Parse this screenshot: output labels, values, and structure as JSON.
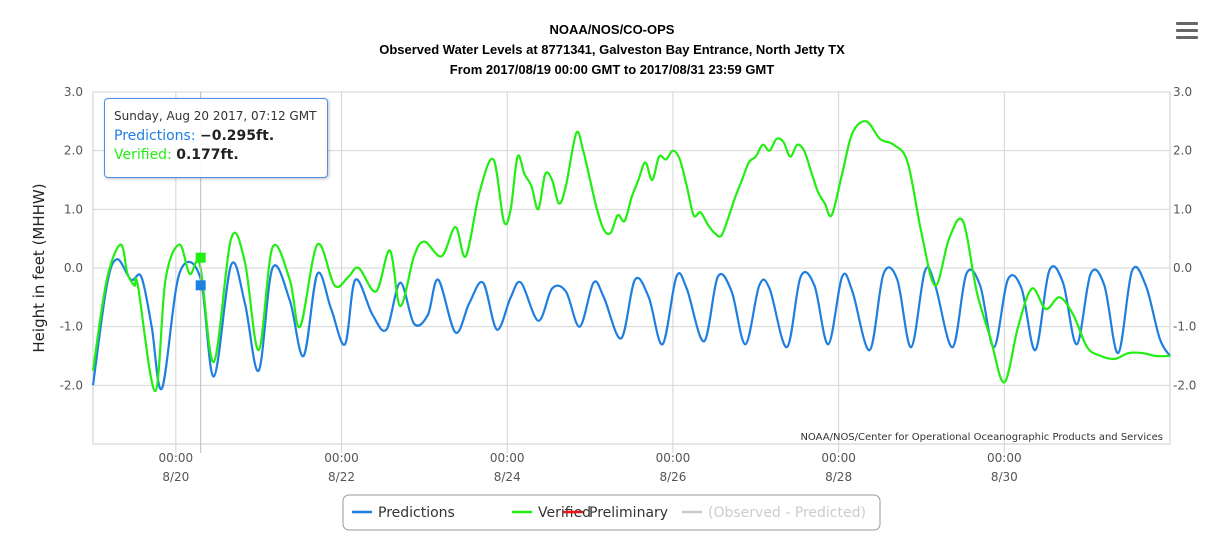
{
  "title": {
    "line1": "NOAA/NOS/CO-OPS",
    "line2": "Observed Water Levels at 8771341, Galveston Bay Entrance, North Jetty TX",
    "line3": "From 2017/08/19 00:00 GMT to 2017/08/31 23:59 GMT"
  },
  "credit": "NOAA/NOS/Center for Operational Oceanographic Products and Services",
  "tooltip": {
    "date": "Sunday, Aug 20 2017, 07:12 GMT",
    "predictions_label": "Predictions:",
    "predictions_value": "−0.295ft.",
    "verified_label": "Verified:",
    "verified_value": "0.177ft."
  },
  "chart_data": {
    "type": "line",
    "ylabel": "Height in feet (MHHW)",
    "ylim": [
      -3.0,
      3.0
    ],
    "y_ticks": [
      "3.0",
      "2.0",
      "1.0",
      "0.0",
      "-1.0",
      "-2.0"
    ],
    "x_start": "2017/08/19 00:00",
    "x_end": "2017/08/31 23:59",
    "x_ticks": [
      {
        "time": "00:00",
        "date": "8/20"
      },
      {
        "time": "00:00",
        "date": "8/22"
      },
      {
        "time": "00:00",
        "date": "8/24"
      },
      {
        "time": "00:00",
        "date": "8/26"
      },
      {
        "time": "00:00",
        "date": "8/28"
      },
      {
        "time": "00:00",
        "date": "8/30"
      }
    ],
    "crosshair": "2017/08/20 07:12",
    "legend_placement": "bottom-center",
    "series": [
      {
        "name": "Predictions",
        "color": "#1f7fe0",
        "x_hours": [
          0,
          4,
          7,
          11,
          14,
          17,
          20,
          25,
          31,
          35,
          40,
          44,
          48,
          52,
          57,
          61,
          65,
          69,
          73,
          76,
          81,
          85,
          89,
          93,
          97,
          100,
          105,
          109,
          113,
          117,
          121,
          124,
          129,
          133,
          137,
          141,
          145,
          148,
          153,
          157,
          161,
          165,
          169,
          172,
          177,
          181,
          185,
          189,
          193,
          196,
          201,
          205,
          209,
          213,
          217,
          220,
          225,
          229,
          233,
          237,
          241,
          244,
          249,
          253,
          257,
          261,
          265,
          269,
          273,
          277,
          281,
          285,
          289,
          293,
          297,
          301,
          305,
          309,
          312
        ],
        "values": [
          -2.0,
          -0.3,
          0.15,
          -0.2,
          -0.15,
          -1.0,
          -2.05,
          -0.1,
          -0.15,
          -1.85,
          0.05,
          -0.6,
          -1.75,
          0.0,
          -0.55,
          -1.5,
          -0.1,
          -0.7,
          -1.3,
          -0.2,
          -0.8,
          -1.05,
          -0.25,
          -0.95,
          -0.8,
          -0.2,
          -1.1,
          -0.6,
          -0.25,
          -1.05,
          -0.5,
          -0.25,
          -0.9,
          -0.35,
          -0.4,
          -1.0,
          -0.25,
          -0.5,
          -1.2,
          -0.2,
          -0.5,
          -1.3,
          -0.15,
          -0.35,
          -1.25,
          -0.15,
          -0.4,
          -1.3,
          -0.3,
          -0.35,
          -1.35,
          -0.15,
          -0.3,
          -1.3,
          -0.15,
          -0.4,
          -1.4,
          -0.1,
          -0.2,
          -1.35,
          -0.05,
          -0.3,
          -1.35,
          -0.1,
          -0.3,
          -1.35,
          -0.2,
          -0.35,
          -1.4,
          -0.05,
          -0.25,
          -1.3,
          -0.1,
          -0.3,
          -1.45,
          -0.05,
          -0.3,
          -1.2,
          -1.5
        ]
      },
      {
        "name": "Verified",
        "color": "#22ee11",
        "x_hours": [
          0,
          4,
          8,
          10,
          12,
          13,
          18,
          21,
          25,
          28,
          31,
          35,
          40,
          44,
          48,
          52,
          57,
          60,
          65,
          70,
          74,
          77,
          82,
          86,
          89,
          93,
          96,
          101,
          105,
          108,
          112,
          116,
          119,
          121,
          123,
          125,
          127,
          129,
          131,
          133,
          135,
          137,
          140,
          142,
          144,
          146,
          148,
          150,
          152,
          154,
          156,
          158,
          160,
          162,
          164,
          166,
          168,
          170,
          172,
          174,
          176,
          178,
          180,
          182,
          184,
          186,
          188,
          190,
          192,
          194,
          196,
          198,
          200,
          202,
          204,
          206,
          208,
          210,
          212,
          214,
          217,
          220,
          224,
          228,
          232,
          236,
          240,
          244,
          248,
          252,
          256,
          260,
          264,
          268,
          272,
          276,
          280,
          284,
          288,
          292,
          296,
          300,
          304,
          308,
          312
        ],
        "values": [
          -1.75,
          -0.2,
          0.4,
          -0.1,
          -0.3,
          -0.3,
          -2.1,
          -0.2,
          0.4,
          -0.1,
          0.05,
          -1.6,
          0.5,
          0.1,
          -1.4,
          0.35,
          -0.2,
          -1.0,
          0.4,
          -0.3,
          -0.15,
          0.0,
          -0.4,
          0.3,
          -0.65,
          0.2,
          0.45,
          0.2,
          0.7,
          0.2,
          1.3,
          1.85,
          0.8,
          1.0,
          1.9,
          1.6,
          1.4,
          1.0,
          1.6,
          1.5,
          1.1,
          1.4,
          2.3,
          2.0,
          1.5,
          1.0,
          0.65,
          0.6,
          0.9,
          0.8,
          1.2,
          1.5,
          1.8,
          1.5,
          1.9,
          1.85,
          2.0,
          1.85,
          1.4,
          0.9,
          0.95,
          0.75,
          0.6,
          0.55,
          0.85,
          1.2,
          1.5,
          1.8,
          1.9,
          2.1,
          2.0,
          2.2,
          2.15,
          1.9,
          2.1,
          2.0,
          1.65,
          1.3,
          1.1,
          0.9,
          1.6,
          2.3,
          2.5,
          2.2,
          2.1,
          1.8,
          0.6,
          -0.3,
          0.5,
          0.8,
          -0.4,
          -1.2,
          -1.95,
          -1.0,
          -0.35,
          -0.7,
          -0.5,
          -0.8,
          -1.35,
          -1.5,
          -1.55,
          -1.45,
          -1.45,
          -1.5,
          -1.5
        ]
      },
      {
        "name": "Preliminary",
        "color": "#ee1111",
        "x_hours": [],
        "values": []
      },
      {
        "name": "(Observed - Predicted)",
        "color": "#cccccc",
        "x_hours": [],
        "values": [],
        "disabled": true
      }
    ]
  }
}
